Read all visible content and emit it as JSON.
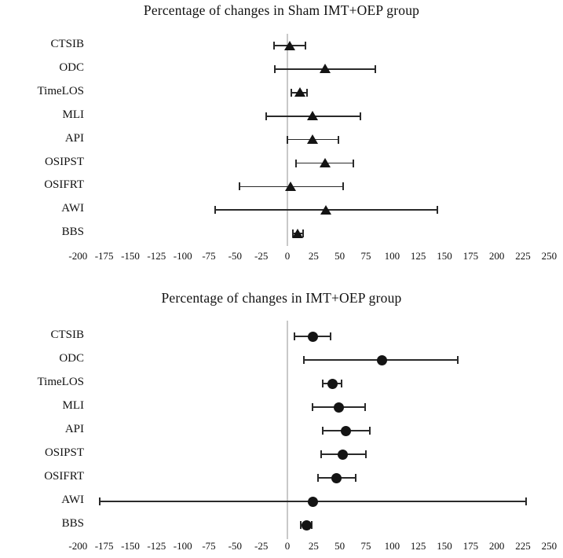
{
  "colors": {
    "marker": "#141414",
    "error_bar": "#2a2a2a",
    "zero_line": "#c9c9c9",
    "text": "#111111"
  },
  "chart_data": [
    {
      "type": "scatter",
      "title": "Percentage of changes in Sham IMT+OEP group",
      "marker": "triangle",
      "orientation": "horizontal-forest-plot",
      "categories": [
        "CTSIB",
        "ODC",
        "TimeLOS",
        "MLI",
        "API",
        "OSIPST",
        "OSIFRT",
        "AWI",
        "BBS"
      ],
      "series": [
        {
          "name": "mean percent change",
          "values": [
            2,
            36,
            12,
            24,
            24,
            36,
            3,
            37,
            10
          ]
        }
      ],
      "error_low": [
        -13,
        -12,
        4,
        -20,
        0,
        8,
        -46,
        -69,
        5
      ],
      "error_high": [
        17,
        84,
        19,
        70,
        49,
        63,
        53,
        143,
        15
      ],
      "xlabel": "",
      "ylabel": "",
      "xlim": [
        -212,
        262
      ],
      "xticks": [
        -200,
        -175,
        -150,
        -125,
        -100,
        -75,
        -50,
        -25,
        0,
        25,
        50,
        75,
        100,
        125,
        150,
        175,
        200,
        225,
        250
      ],
      "grid": false,
      "zero_reference_line": true,
      "legend": "none"
    },
    {
      "type": "scatter",
      "title": "Percentage of changes in IMT+OEP group",
      "marker": "circle",
      "orientation": "horizontal-forest-plot",
      "categories": [
        "CTSIB",
        "ODC",
        "TimeLOS",
        "MLI",
        "API",
        "OSIPST",
        "OSIFRT",
        "AWI",
        "BBS"
      ],
      "series": [
        {
          "name": "mean percent change",
          "values": [
            24,
            90,
            43,
            49,
            56,
            53,
            47,
            24,
            18
          ]
        }
      ],
      "error_low": [
        7,
        16,
        34,
        24,
        34,
        32,
        29,
        -179,
        13
      ],
      "error_high": [
        41,
        163,
        52,
        74,
        79,
        75,
        65,
        228,
        23
      ],
      "xlabel": "",
      "ylabel": "",
      "xlim": [
        -212,
        262
      ],
      "xticks": [
        -200,
        -175,
        -150,
        -125,
        -100,
        -75,
        -50,
        -25,
        0,
        25,
        50,
        75,
        100,
        125,
        150,
        175,
        200,
        225,
        250
      ],
      "grid": false,
      "zero_reference_line": true,
      "legend": "none"
    }
  ]
}
